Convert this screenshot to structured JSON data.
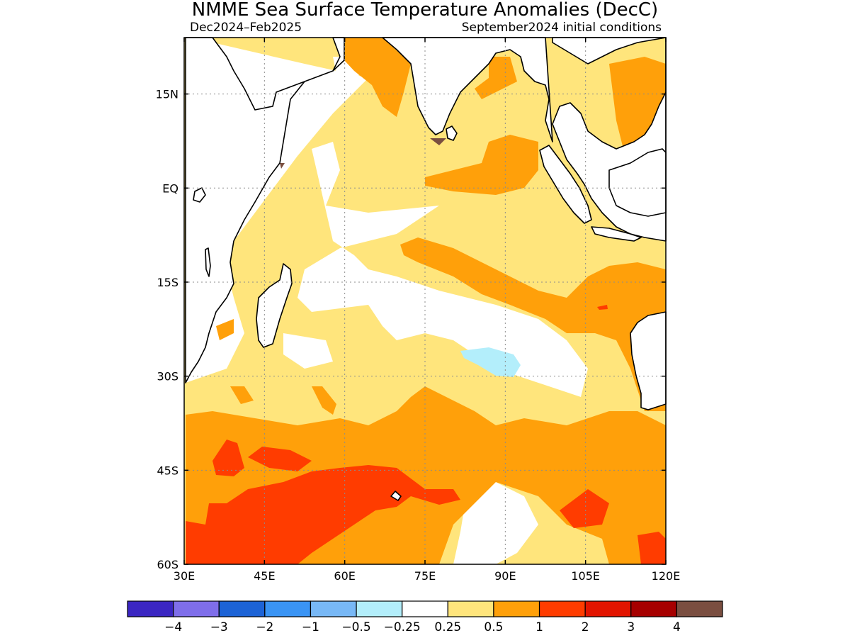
{
  "title": "NMME Sea Surface Temperature Anomalies (DecC)",
  "subtitle_left": "Dec2024–Feb2025",
  "subtitle_right": "September2024 initial conditions",
  "map": {
    "lon_range": [
      30,
      120
    ],
    "lat_range": [
      -60,
      24
    ],
    "x_ticks": [
      {
        "lon": 30,
        "label": "30E"
      },
      {
        "lon": 45,
        "label": "45E"
      },
      {
        "lon": 60,
        "label": "60E"
      },
      {
        "lon": 75,
        "label": "75E"
      },
      {
        "lon": 90,
        "label": "90E"
      },
      {
        "lon": 105,
        "label": "105E"
      },
      {
        "lon": 120,
        "label": "120E"
      }
    ],
    "y_ticks": [
      {
        "lat": 15,
        "label": "15N"
      },
      {
        "lat": 0,
        "label": "EQ"
      },
      {
        "lat": -15,
        "label": "15S"
      },
      {
        "lat": -30,
        "label": "30S"
      },
      {
        "lat": -45,
        "label": "45S"
      },
      {
        "lat": -60,
        "label": "60S"
      }
    ],
    "grid": true,
    "land_color": "#ffffff",
    "coast_color": "#000000"
  },
  "colorbar": {
    "colors": [
      "#3b26c2",
      "#7f6eea",
      "#1d63d6",
      "#3a94f4",
      "#78b8f6",
      "#b3eefb",
      "#ffffff",
      "#ffe57c",
      "#ffa00a",
      "#ff3c00",
      "#e21400",
      "#a60000",
      "#7a4e40"
    ],
    "labels": [
      "−4",
      "−3",
      "−2",
      "−1",
      "−0.5",
      "−0.25",
      "0.25",
      "0.5",
      "1",
      "2",
      "3",
      "4"
    ]
  }
}
